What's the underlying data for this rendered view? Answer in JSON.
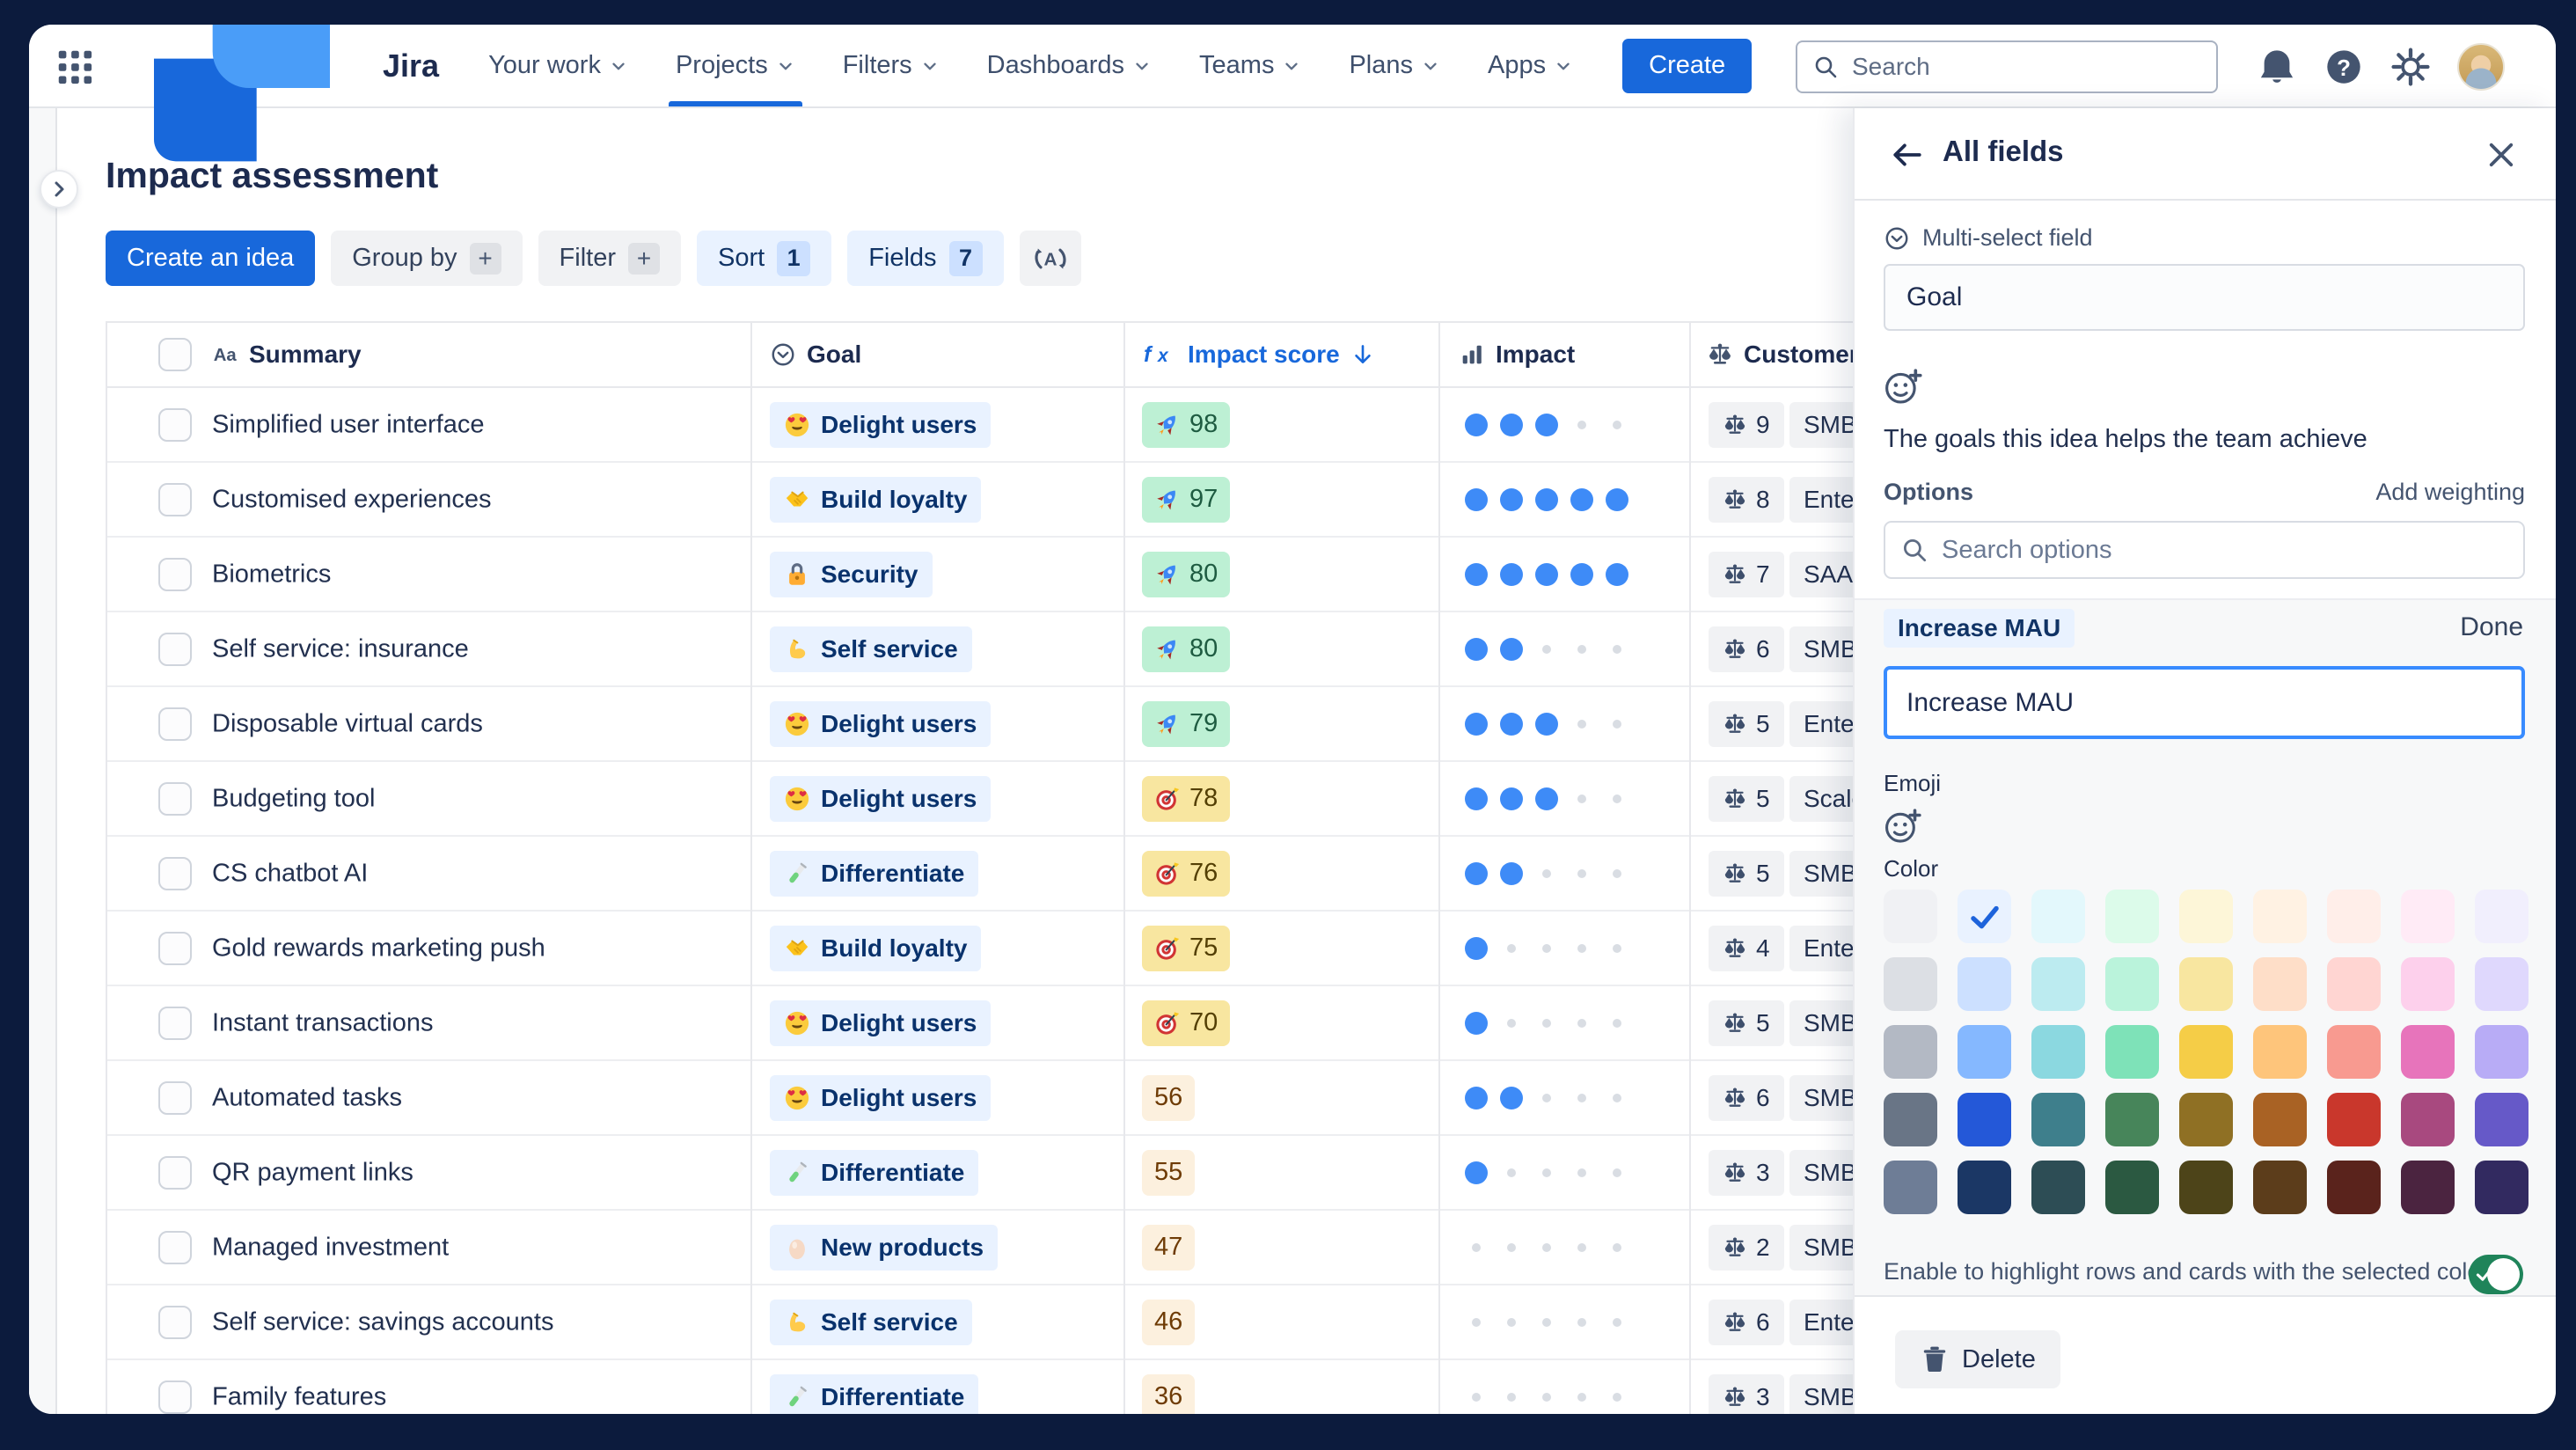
{
  "theme": {
    "frame_bg": "#0C1B3D",
    "accent_blue": "#1868DB",
    "focus_border": "#388BFF",
    "toggle_on_green": "#1F845A",
    "impact_dot_filled": "#3E8BF7",
    "impact_dot_empty": "#D9DDE3",
    "goal_pill_bg": "#E9F2FF",
    "goal_pill_text": "#09326C",
    "swatch_check": "#1D63DB",
    "score_tones": {
      "green": {
        "bg": "#BDF0D4",
        "text": "#1E5B41"
      },
      "yellow": {
        "bg": "#F8E6A0",
        "text": "#533F04"
      },
      "cream": {
        "bg": "#FCF0DE",
        "text": "#6E3B05"
      }
    }
  },
  "nav": {
    "logo_text": "Jira",
    "items": [
      "Your work",
      "Projects",
      "Filters",
      "Dashboards",
      "Teams",
      "Plans",
      "Apps"
    ],
    "active_index": 1,
    "create_label": "Create",
    "search_placeholder": "Search"
  },
  "page": {
    "title": "Impact assessment"
  },
  "toolbar": {
    "create_idea": "Create an idea",
    "group_by": "Group by",
    "filter": "Filter",
    "sort": "Sort",
    "sort_count": "1",
    "fields": "Fields",
    "fields_count": "7"
  },
  "table": {
    "impact_max": 5,
    "columns": [
      {
        "label": "Summary",
        "icon": "aa"
      },
      {
        "label": "Goal",
        "icon": "circle-chevron"
      },
      {
        "label": "Impact score",
        "icon": "fx",
        "sorted": true
      },
      {
        "label": "Impact",
        "icon": "bar-chart"
      },
      {
        "label": "Customer",
        "icon": "scale"
      }
    ],
    "rows": [
      {
        "summary": "Simplified user interface",
        "goal": {
          "emoji": "heart-eyes",
          "label": "Delight users"
        },
        "score": {
          "value": "98",
          "emoji": "rocket",
          "tone": "green"
        },
        "impact": 3,
        "customer": {
          "count": "9",
          "segment": "SMB"
        }
      },
      {
        "summary": "Customised experiences",
        "goal": {
          "emoji": "handshake",
          "label": "Build loyalty"
        },
        "score": {
          "value": "97",
          "emoji": "rocket",
          "tone": "green"
        },
        "impact": 5,
        "customer": {
          "count": "8",
          "segment": "Enterprise"
        }
      },
      {
        "summary": "Biometrics",
        "goal": {
          "emoji": "lock",
          "label": "Security"
        },
        "score": {
          "value": "80",
          "emoji": "rocket",
          "tone": "green"
        },
        "impact": 5,
        "customer": {
          "count": "7",
          "segment": "SAAS"
        }
      },
      {
        "summary": "Self service: insurance",
        "goal": {
          "emoji": "biceps",
          "label": "Self service"
        },
        "score": {
          "value": "80",
          "emoji": "rocket",
          "tone": "green"
        },
        "impact": 2,
        "customer": {
          "count": "6",
          "segment": "SMB"
        }
      },
      {
        "summary": "Disposable virtual cards",
        "goal": {
          "emoji": "heart-eyes",
          "label": "Delight users"
        },
        "score": {
          "value": "79",
          "emoji": "rocket",
          "tone": "green"
        },
        "impact": 3,
        "customer": {
          "count": "5",
          "segment": "Enterprise"
        }
      },
      {
        "summary": "Budgeting tool",
        "goal": {
          "emoji": "heart-eyes",
          "label": "Delight users"
        },
        "score": {
          "value": "78",
          "emoji": "target",
          "tone": "yellow"
        },
        "impact": 3,
        "customer": {
          "count": "5",
          "segment": "Scaleup"
        }
      },
      {
        "summary": "CS chatbot AI",
        "goal": {
          "emoji": "test-tube",
          "label": "Differentiate"
        },
        "score": {
          "value": "76",
          "emoji": "target",
          "tone": "yellow"
        },
        "impact": 2,
        "customer": {
          "count": "5",
          "segment": "SMB"
        }
      },
      {
        "summary": "Gold rewards marketing push",
        "goal": {
          "emoji": "handshake",
          "label": "Build loyalty"
        },
        "score": {
          "value": "75",
          "emoji": "target",
          "tone": "yellow"
        },
        "impact": 1,
        "customer": {
          "count": "4",
          "segment": "Enterprise"
        }
      },
      {
        "summary": "Instant transactions",
        "goal": {
          "emoji": "heart-eyes",
          "label": "Delight users"
        },
        "score": {
          "value": "70",
          "emoji": "target",
          "tone": "yellow"
        },
        "impact": 1,
        "customer": {
          "count": "5",
          "segment": "SMB"
        }
      },
      {
        "summary": "Automated tasks",
        "goal": {
          "emoji": "heart-eyes",
          "label": "Delight users"
        },
        "score": {
          "value": "56",
          "emoji": null,
          "tone": "cream"
        },
        "impact": 2,
        "customer": {
          "count": "6",
          "segment": "SMB"
        }
      },
      {
        "summary": "QR payment links",
        "goal": {
          "emoji": "test-tube",
          "label": "Differentiate"
        },
        "score": {
          "value": "55",
          "emoji": null,
          "tone": "cream"
        },
        "impact": 1,
        "customer": {
          "count": "3",
          "segment": "SMB"
        }
      },
      {
        "summary": "Managed investment",
        "goal": {
          "emoji": "egg",
          "label": "New products"
        },
        "score": {
          "value": "47",
          "emoji": null,
          "tone": "cream"
        },
        "impact": 0,
        "customer": {
          "count": "2",
          "segment": "SMB"
        }
      },
      {
        "summary": "Self service: savings accounts",
        "goal": {
          "emoji": "biceps",
          "label": "Self service"
        },
        "score": {
          "value": "46",
          "emoji": null,
          "tone": "cream"
        },
        "impact": 0,
        "customer": {
          "count": "6",
          "segment": "Enterprise"
        }
      },
      {
        "summary": "Family features",
        "goal": {
          "emoji": "test-tube",
          "label": "Differentiate"
        },
        "score": {
          "value": "36",
          "emoji": null,
          "tone": "cream"
        },
        "impact": 0,
        "customer": {
          "count": "3",
          "segment": "SMB"
        }
      }
    ]
  },
  "panel": {
    "title": "All fields",
    "field_type": "Multi-select field",
    "field_name": "Goal",
    "description": "The goals this idea helps the team achieve",
    "options_label": "Options",
    "add_weighting": "Add weighting",
    "search_placeholder": "Search options",
    "editing": {
      "option_pill": "Increase MAU",
      "done": "Done",
      "input_value": "Increase MAU",
      "emoji_label": "Emoji",
      "color_label": "Color"
    },
    "colors": {
      "selected": {
        "row": 0,
        "col": 1
      },
      "rows": [
        [
          "#F0F1F4",
          "#E9F2FF",
          "#E3F8FC",
          "#DCFBEA",
          "#FDF6D8",
          "#FFF2E3",
          "#FFEEE9",
          "#FFEBF6",
          "#F1EFFD"
        ],
        [
          "#DCDFE4",
          "#CCE0FF",
          "#BCEBF0",
          "#BAF3DB",
          "#F8E6A0",
          "#FEDEC8",
          "#FFD5D2",
          "#FDD0EC",
          "#DFD8FD"
        ],
        [
          "#B3B9C4",
          "#85B8FF",
          "#8BD8E0",
          "#7EE2B8",
          "#F5CD47",
          "#FEC57B",
          "#F89A90",
          "#E774BB",
          "#B8ACF6"
        ],
        [
          "#697586",
          "#2458D8",
          "#3E7F8C",
          "#47855A",
          "#8F7024",
          "#A96224",
          "#C9372C",
          "#A8497F",
          "#6659C8"
        ],
        [
          "#6E7D96",
          "#1B3765",
          "#2D4D55",
          "#2B5941",
          "#4D4419",
          "#5C3D1B",
          "#5A231C",
          "#4B2440",
          "#322A60"
        ]
      ]
    },
    "toggle_label": "Enable to highlight rows and cards with the selected color",
    "toggle_on": true,
    "delete_label": "Delete"
  }
}
